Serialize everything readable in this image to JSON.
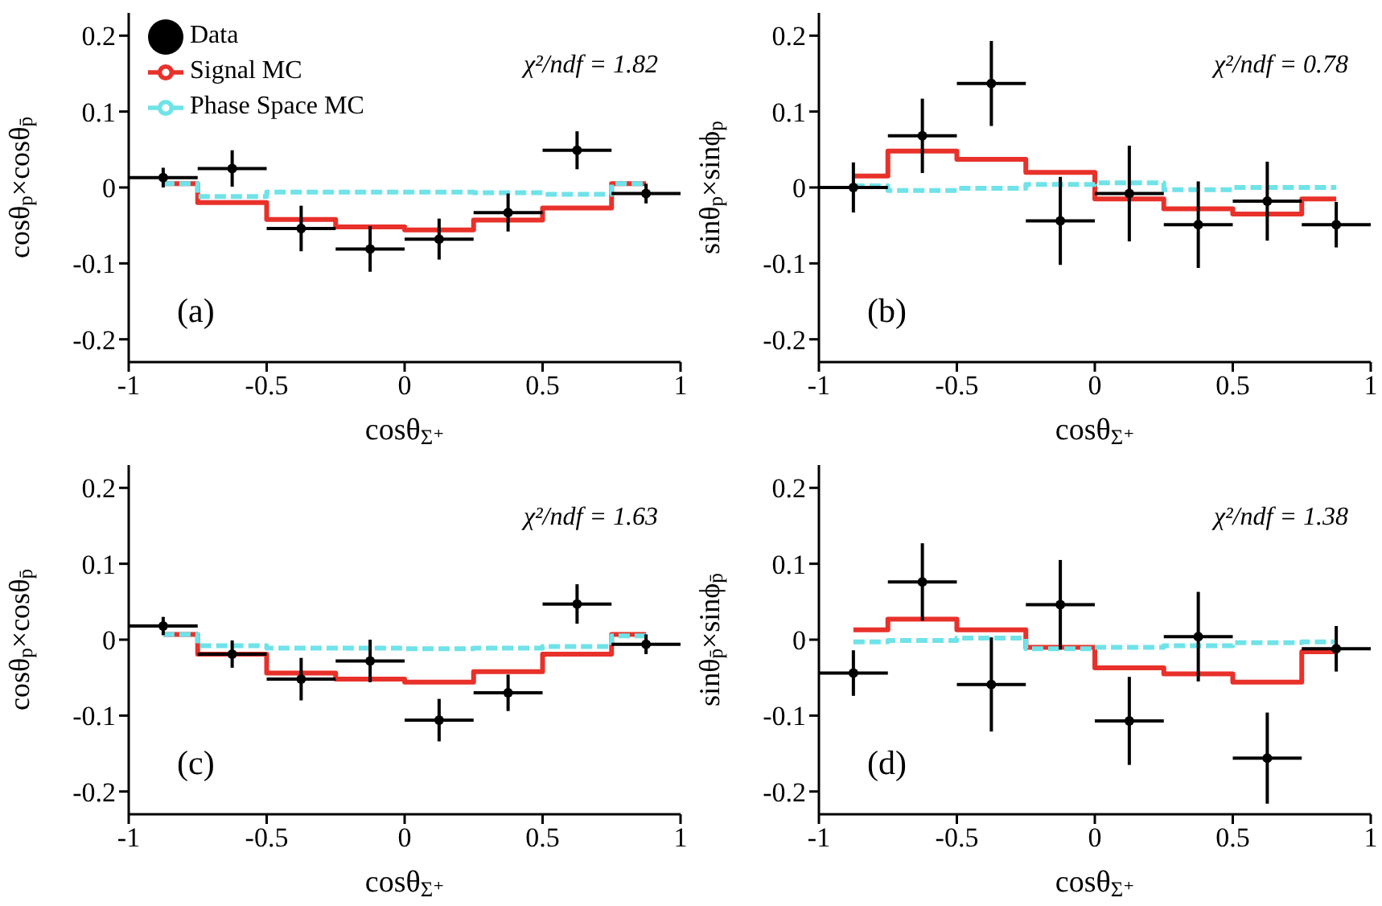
{
  "chart_data": [
    {
      "type": "scatter",
      "x": [
        -0.875,
        -0.625,
        -0.375,
        -0.125,
        0.125,
        0.375,
        0.625,
        0.875
      ],
      "xlim": [
        -1,
        1
      ],
      "xticks": [
        -1,
        -0.5,
        0,
        0.5,
        1
      ],
      "ylim": [
        -0.23,
        0.23
      ],
      "yticks": [
        -0.2,
        -0.1,
        0,
        0.1,
        0.2
      ],
      "xlabel": "cosθ$_{Σ⁺}$",
      "ylabel": "cosθ$_{p}$×cosθ$_{p̄}$",
      "legend": "top left",
      "annotations": [
        "χ²/ndf = 1.82",
        "(a)"
      ],
      "series": [
        {
          "name": "Data",
          "type": "scatter",
          "marker": "circle",
          "color": "#000000",
          "values": [
            0.013,
            0.025,
            -0.054,
            -0.081,
            -0.068,
            -0.033,
            0.049,
            -0.008
          ],
          "errors": [
            0.013,
            0.024,
            0.03,
            0.03,
            0.027,
            0.025,
            0.025,
            0.013
          ],
          "xerrors": [
            0.125,
            0.125,
            0.125,
            0.125,
            0.125,
            0.125,
            0.125,
            0.125
          ]
        },
        {
          "name": "Signal MC",
          "type": "step",
          "line_style": "solid",
          "color": "#e8312a",
          "values": [
            0.005,
            -0.02,
            -0.042,
            -0.052,
            -0.056,
            -0.043,
            -0.027,
            0.005
          ]
        },
        {
          "name": "Phase Space MC",
          "type": "step",
          "line_style": "dashed",
          "color": "#6fe3e8",
          "values": [
            0.005,
            -0.012,
            -0.006,
            -0.006,
            -0.006,
            -0.007,
            -0.009,
            0.005
          ]
        }
      ]
    },
    {
      "type": "scatter",
      "x": [
        -0.875,
        -0.625,
        -0.375,
        -0.125,
        0.125,
        0.375,
        0.625,
        0.875
      ],
      "xlim": [
        -1,
        1
      ],
      "xticks": [
        -1,
        -0.5,
        0,
        0.5,
        1
      ],
      "ylim": [
        -0.23,
        0.23
      ],
      "yticks": [
        -0.2,
        -0.1,
        0,
        0.1,
        0.2
      ],
      "xlabel": "cosθ$_{Σ⁺}$",
      "ylabel": "sinθ$_{p}$×sinϕ$_{p}$",
      "annotations": [
        "χ²/ndf = 0.78",
        "(b)"
      ],
      "series": [
        {
          "type": "scatter",
          "marker": "circle",
          "color": "#000000",
          "values": [
            0.0,
            0.068,
            0.137,
            -0.044,
            -0.008,
            -0.049,
            -0.018,
            -0.049
          ],
          "errors": [
            0.033,
            0.049,
            0.056,
            0.058,
            0.063,
            0.057,
            0.052,
            0.03
          ],
          "xerrors": [
            0.125,
            0.125,
            0.125,
            0.125,
            0.125,
            0.125,
            0.125,
            0.125
          ]
        },
        {
          "type": "step",
          "line_style": "solid",
          "color": "#e8312a",
          "values": [
            0.015,
            0.048,
            0.037,
            0.02,
            -0.015,
            -0.028,
            -0.035,
            -0.015
          ]
        },
        {
          "type": "step",
          "line_style": "dashed",
          "color": "#6fe3e8",
          "values": [
            0.002,
            -0.004,
            -0.001,
            0.004,
            0.006,
            -0.003,
            0.0,
            0.0
          ]
        }
      ]
    },
    {
      "type": "scatter",
      "x": [
        -0.875,
        -0.625,
        -0.375,
        -0.125,
        0.125,
        0.375,
        0.625,
        0.875
      ],
      "xlim": [
        -1,
        1
      ],
      "xticks": [
        -1,
        -0.5,
        0,
        0.5,
        1
      ],
      "ylim": [
        -0.23,
        0.23
      ],
      "yticks": [
        -0.2,
        -0.1,
        0,
        0.1,
        0.2
      ],
      "xlabel": "cosθ$_{Σ⁺}$",
      "ylabel": "cosθ$_{p}$×cosθ$_{p̄}$",
      "annotations": [
        "χ²/ndf = 1.63",
        "(c)"
      ],
      "series": [
        {
          "type": "scatter",
          "marker": "circle",
          "color": "#000000",
          "values": [
            0.018,
            -0.019,
            -0.052,
            -0.028,
            -0.106,
            -0.07,
            0.047,
            -0.006
          ],
          "errors": [
            0.012,
            0.018,
            0.028,
            0.028,
            0.028,
            0.024,
            0.026,
            0.013
          ],
          "xerrors": [
            0.125,
            0.125,
            0.125,
            0.125,
            0.125,
            0.125,
            0.125,
            0.125
          ]
        },
        {
          "type": "step",
          "line_style": "solid",
          "color": "#e8312a",
          "values": [
            0.007,
            -0.019,
            -0.044,
            -0.052,
            -0.056,
            -0.042,
            -0.019,
            0.007
          ]
        },
        {
          "type": "step",
          "line_style": "dashed",
          "color": "#6fe3e8",
          "values": [
            0.007,
            -0.008,
            -0.011,
            -0.011,
            -0.012,
            -0.011,
            -0.009,
            0.005
          ]
        }
      ]
    },
    {
      "type": "scatter",
      "x": [
        -0.875,
        -0.625,
        -0.375,
        -0.125,
        0.125,
        0.375,
        0.625,
        0.875
      ],
      "xlim": [
        -1,
        1
      ],
      "xticks": [
        -1,
        -0.5,
        0,
        0.5,
        1
      ],
      "ylim": [
        -0.23,
        0.23
      ],
      "yticks": [
        -0.2,
        -0.1,
        0,
        0.1,
        0.2
      ],
      "xlabel": "cosθ$_{Σ⁺}$",
      "ylabel": "sinθ$_{p̄}$×sinϕ$_{p̄}$",
      "annotations": [
        "χ²/ndf = 1.38",
        "(d)"
      ],
      "series": [
        {
          "type": "scatter",
          "marker": "circle",
          "color": "#000000",
          "values": [
            -0.044,
            0.076,
            -0.059,
            0.046,
            -0.107,
            0.004,
            -0.156,
            -0.012
          ],
          "errors": [
            0.03,
            0.051,
            0.062,
            0.059,
            0.058,
            0.059,
            0.06,
            0.03
          ],
          "xerrors": [
            0.125,
            0.125,
            0.125,
            0.125,
            0.125,
            0.125,
            0.125,
            0.125
          ]
        },
        {
          "type": "step",
          "line_style": "solid",
          "color": "#e8312a",
          "values": [
            0.013,
            0.027,
            0.013,
            -0.01,
            -0.037,
            -0.045,
            -0.056,
            -0.016
          ]
        },
        {
          "type": "step",
          "line_style": "dashed",
          "color": "#6fe3e8",
          "values": [
            -0.003,
            -0.001,
            0.002,
            -0.012,
            -0.01,
            -0.008,
            -0.004,
            -0.003
          ]
        }
      ]
    }
  ]
}
